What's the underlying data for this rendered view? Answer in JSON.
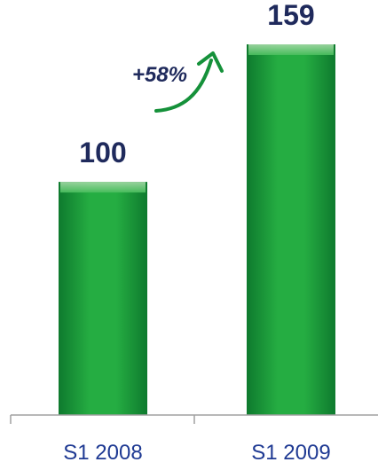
{
  "chart_data": {
    "type": "bar",
    "categories": [
      "S1 2008",
      "S1 2009"
    ],
    "values": [
      100,
      159
    ],
    "value_labels": [
      "100",
      "159"
    ],
    "annotation": "+58%",
    "title": "",
    "xlabel": "",
    "ylabel": "",
    "ylim": [
      0,
      159
    ],
    "grid": false,
    "legend": "none"
  },
  "colors": {
    "bar_dark": "#0e7a2e",
    "bar_mid": "#22a83e",
    "bar_light": "#3cbf52",
    "arrow": "#15913a",
    "value_text": "#1f2a5c",
    "category_text": "#1f3a93",
    "axis": "#a0a0a0"
  }
}
